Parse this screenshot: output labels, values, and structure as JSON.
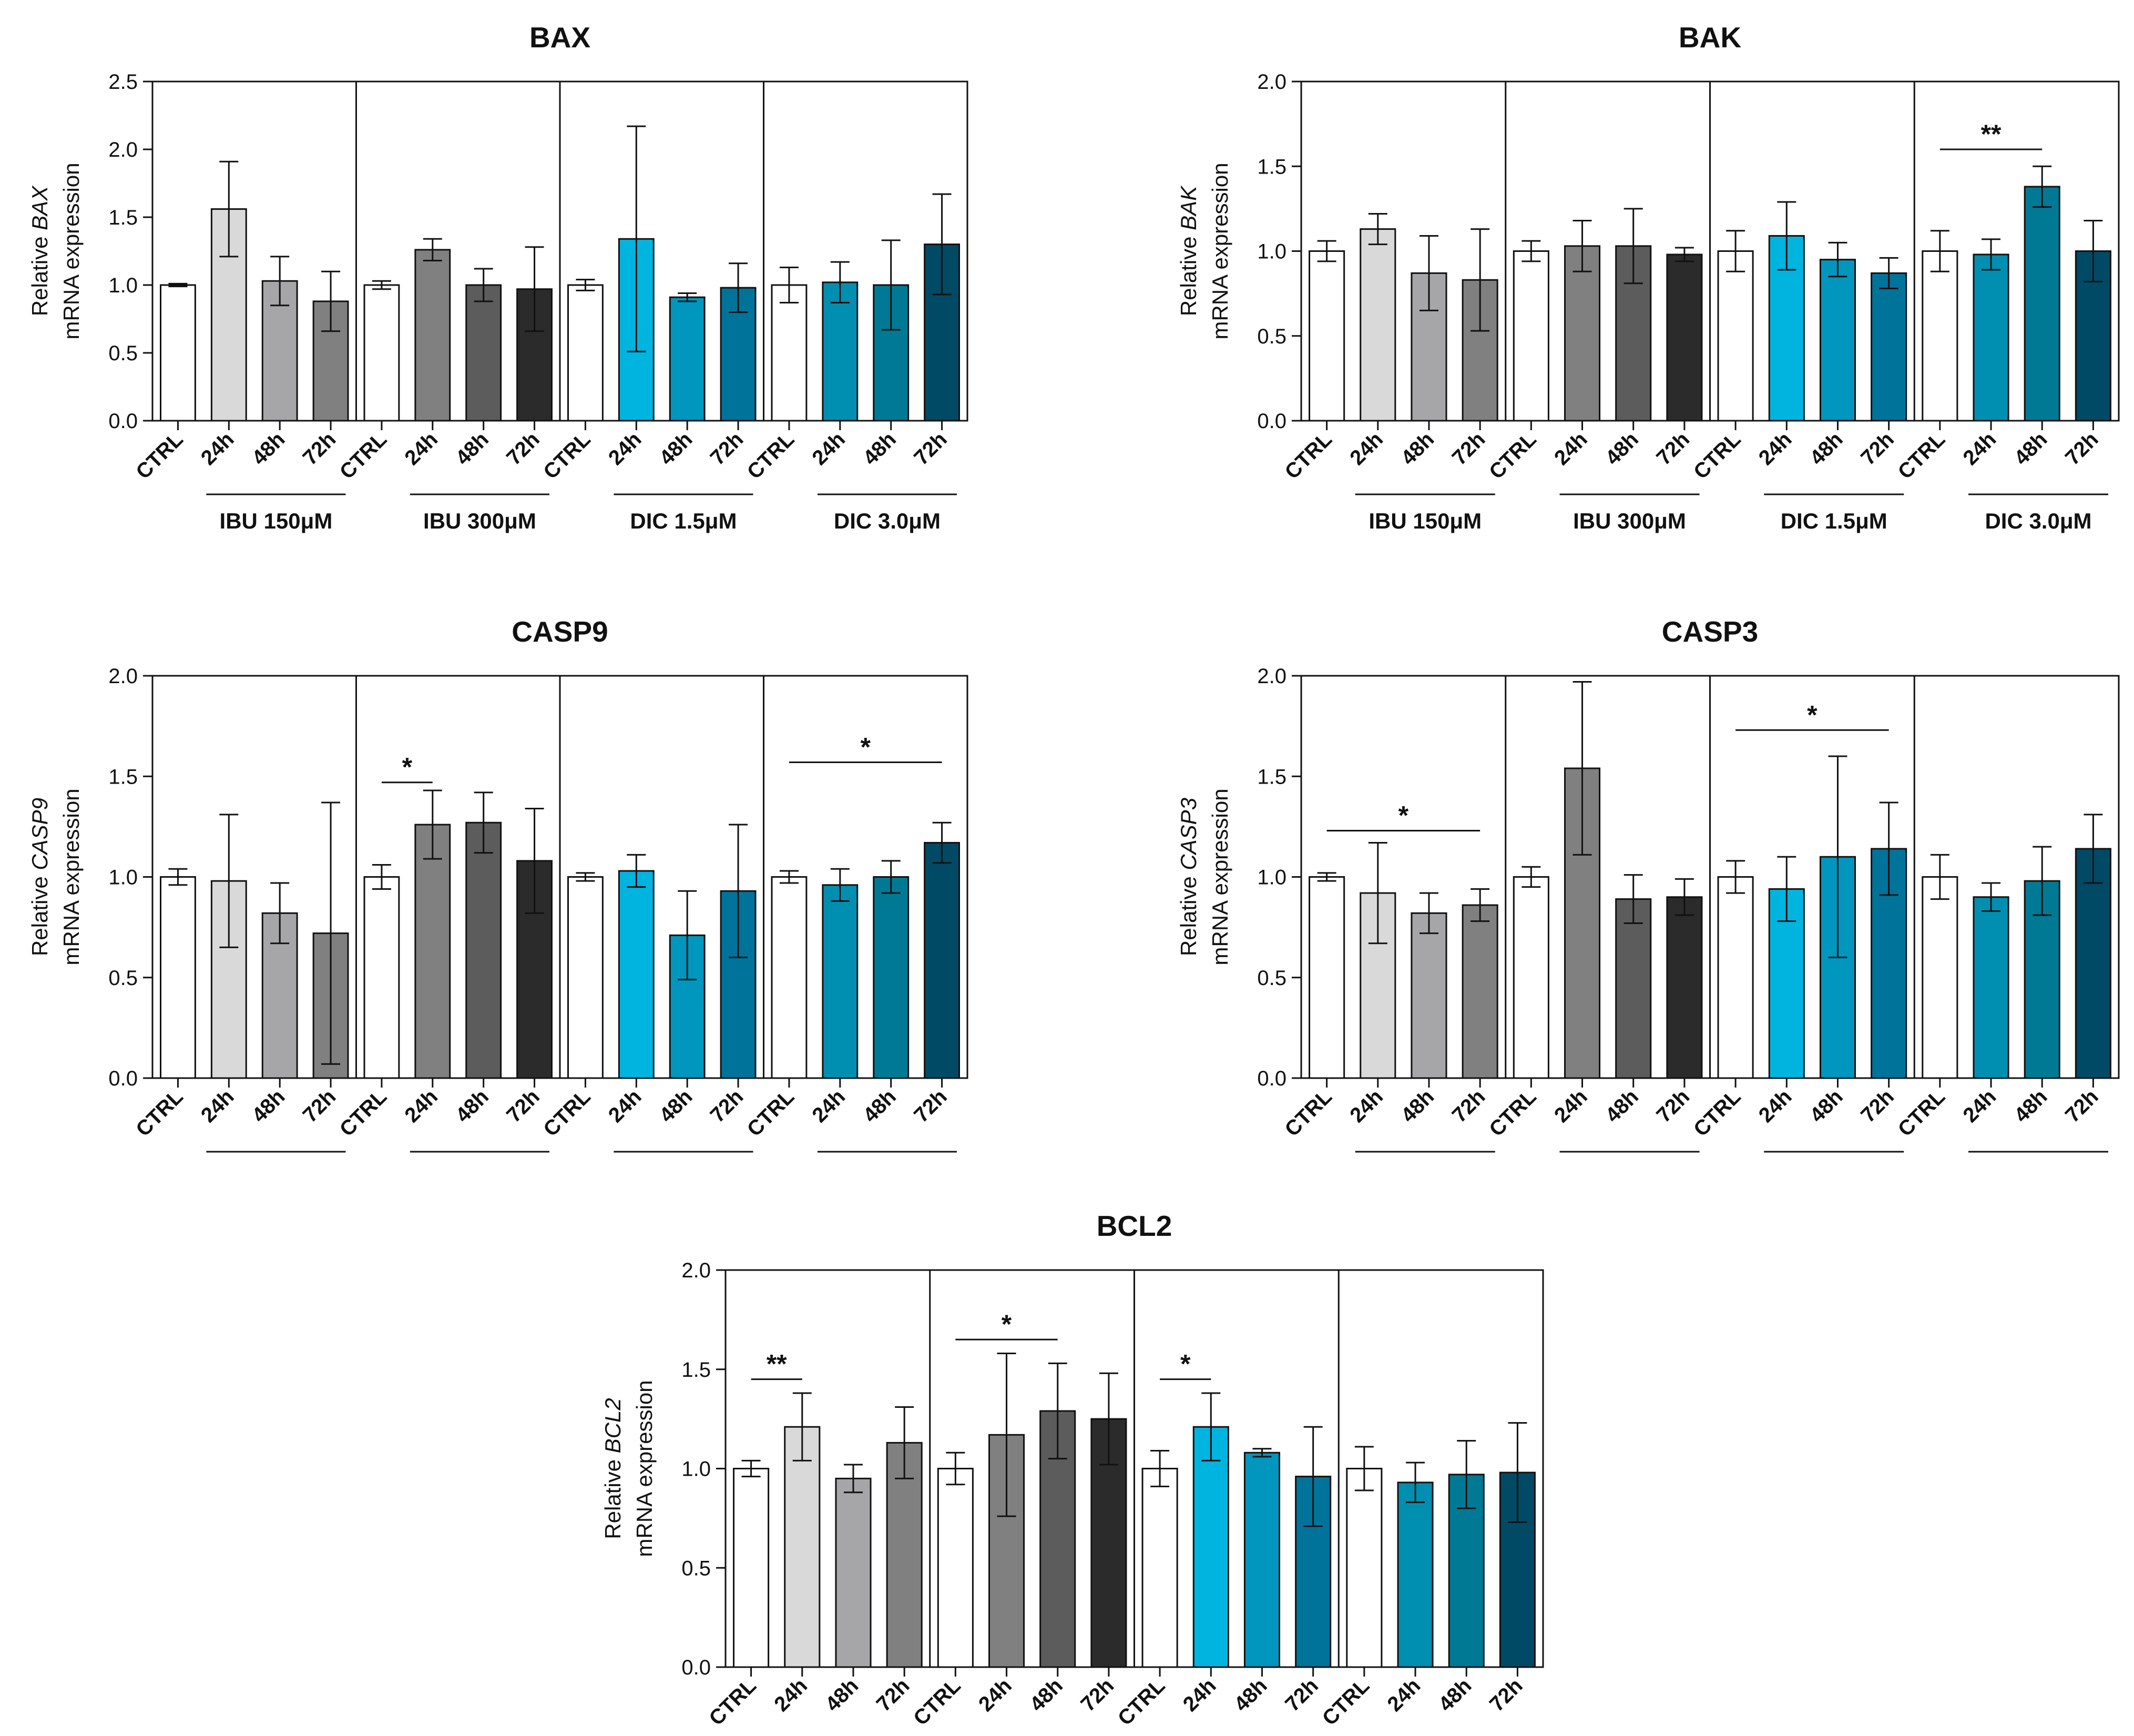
{
  "figure": {
    "categories": [
      "CTRL",
      "24h",
      "48h",
      "72h"
    ],
    "groups": [
      "IBU 150μM",
      "IBU 300μM",
      "DIC 1.5μM",
      "DIC 3.0μM"
    ],
    "ylabel_prefix": "Relative",
    "ylabel_suffix": "mRNA expression",
    "colors": [
      [
        "#ffffff",
        "#d9d9d9",
        "#a6a6a8",
        "#808080"
      ],
      [
        "#ffffff",
        "#808080",
        "#5c5c5c",
        "#2b2b2b"
      ],
      [
        "#ffffff",
        "#00b4e0",
        "#0096bd",
        "#00739a"
      ],
      [
        "#ffffff",
        "#008fb0",
        "#007a94",
        "#004a66"
      ]
    ]
  },
  "chart_data": [
    {
      "type": "bar",
      "title": "BAX",
      "gene": "BAX",
      "ylim": [
        0,
        2.5
      ],
      "yticks": [
        "0.0",
        "0.5",
        "1.0",
        "1.5",
        "2.0",
        "2.5"
      ],
      "series": [
        {
          "name": "IBU 150μM",
          "values": [
            1.0,
            1.56,
            1.03,
            0.88
          ],
          "errors": [
            0.01,
            0.35,
            0.18,
            0.22
          ]
        },
        {
          "name": "IBU 300μM",
          "values": [
            1.0,
            1.26,
            1.0,
            0.97
          ],
          "errors": [
            0.03,
            0.08,
            0.12,
            0.31
          ]
        },
        {
          "name": "DIC 1.5μM",
          "values": [
            1.0,
            1.34,
            0.91,
            0.98
          ],
          "errors": [
            0.04,
            0.83,
            0.03,
            0.18
          ]
        },
        {
          "name": "DIC 3.0μM",
          "values": [
            1.0,
            1.02,
            1.0,
            1.3
          ],
          "errors": [
            0.13,
            0.15,
            0.33,
            0.37
          ]
        }
      ],
      "significance": []
    },
    {
      "type": "bar",
      "title": "BAK",
      "gene": "BAK",
      "ylim": [
        0,
        2.0
      ],
      "yticks": [
        "0.0",
        "0.5",
        "1.0",
        "1.5",
        "2.0"
      ],
      "series": [
        {
          "name": "IBU 150μM",
          "values": [
            1.0,
            1.13,
            0.87,
            0.83
          ],
          "errors": [
            0.06,
            0.09,
            0.22,
            0.3
          ]
        },
        {
          "name": "IBU 300μM",
          "values": [
            1.0,
            1.03,
            1.03,
            0.98
          ],
          "errors": [
            0.06,
            0.15,
            0.22,
            0.04
          ]
        },
        {
          "name": "DIC 1.5μM",
          "values": [
            1.0,
            1.09,
            0.95,
            0.87
          ],
          "errors": [
            0.12,
            0.2,
            0.1,
            0.09
          ]
        },
        {
          "name": "DIC 3.0μM",
          "values": [
            1.0,
            0.98,
            1.38,
            1.0
          ],
          "errors": [
            0.12,
            0.09,
            0.12,
            0.18
          ]
        }
      ],
      "significance": [
        {
          "group": 3,
          "from": 0,
          "to": 2,
          "y": 1.6,
          "label": "**"
        }
      ]
    },
    {
      "type": "bar",
      "title": "CASP9",
      "gene": "CASP9",
      "ylim": [
        0,
        2.0
      ],
      "yticks": [
        "0.0",
        "0.5",
        "1.0",
        "1.5",
        "2.0"
      ],
      "series": [
        {
          "name": "IBU 150μM",
          "values": [
            1.0,
            0.98,
            0.82,
            0.72
          ],
          "errors": [
            0.04,
            0.33,
            0.15,
            0.65
          ]
        },
        {
          "name": "IBU 300μM",
          "values": [
            1.0,
            1.26,
            1.27,
            1.08
          ],
          "errors": [
            0.06,
            0.17,
            0.15,
            0.26
          ]
        },
        {
          "name": "DIC 1.5μM",
          "values": [
            1.0,
            1.03,
            0.71,
            0.93
          ],
          "errors": [
            0.02,
            0.08,
            0.22,
            0.33
          ]
        },
        {
          "name": "DIC 3.0μM",
          "values": [
            1.0,
            0.96,
            1.0,
            1.17
          ],
          "errors": [
            0.03,
            0.08,
            0.08,
            0.1
          ]
        }
      ],
      "significance": [
        {
          "group": 1,
          "from": 0,
          "to": 1,
          "y": 1.47,
          "label": "*"
        },
        {
          "group": 3,
          "from": 0,
          "to": 3,
          "y": 1.57,
          "label": "*"
        }
      ]
    },
    {
      "type": "bar",
      "title": "CASP3",
      "gene": "CASP3",
      "ylim": [
        0,
        2.0
      ],
      "yticks": [
        "0.0",
        "0.5",
        "1.0",
        "1.5",
        "2.0"
      ],
      "series": [
        {
          "name": "IBU 150μM",
          "values": [
            1.0,
            0.92,
            0.82,
            0.86
          ],
          "errors": [
            0.02,
            0.25,
            0.1,
            0.08
          ]
        },
        {
          "name": "IBU 300μM",
          "values": [
            1.0,
            1.54,
            0.89,
            0.9
          ],
          "errors": [
            0.05,
            0.43,
            0.12,
            0.09
          ]
        },
        {
          "name": "DIC 1.5μM",
          "values": [
            1.0,
            0.94,
            1.1,
            1.14
          ],
          "errors": [
            0.08,
            0.16,
            0.5,
            0.23
          ]
        },
        {
          "name": "DIC 3.0μM",
          "values": [
            1.0,
            0.9,
            0.98,
            1.14
          ],
          "errors": [
            0.11,
            0.07,
            0.17,
            0.17
          ]
        }
      ],
      "significance": [
        {
          "group": 0,
          "from": 0,
          "to": 3,
          "y": 1.23,
          "label": "*"
        },
        {
          "group": 2,
          "from": 0,
          "to": 3,
          "y": 1.73,
          "label": "*"
        }
      ]
    },
    {
      "type": "bar",
      "title": "BCL2",
      "gene": "BCL2",
      "ylim": [
        0,
        2.0
      ],
      "yticks": [
        "0.0",
        "0.5",
        "1.0",
        "1.5",
        "2.0"
      ],
      "series": [
        {
          "name": "IBU 150μM",
          "values": [
            1.0,
            1.21,
            0.95,
            1.13
          ],
          "errors": [
            0.04,
            0.17,
            0.07,
            0.18
          ]
        },
        {
          "name": "IBU 300μM",
          "values": [
            1.0,
            1.17,
            1.29,
            1.25
          ],
          "errors": [
            0.08,
            0.41,
            0.24,
            0.23
          ]
        },
        {
          "name": "DIC 1.5μM",
          "values": [
            1.0,
            1.21,
            1.08,
            0.96
          ],
          "errors": [
            0.09,
            0.17,
            0.02,
            0.25
          ]
        },
        {
          "name": "DIC 3.0μM",
          "values": [
            1.0,
            0.93,
            0.97,
            0.98
          ],
          "errors": [
            0.11,
            0.1,
            0.17,
            0.25
          ]
        }
      ],
      "significance": [
        {
          "group": 0,
          "from": 0,
          "to": 1,
          "y": 1.45,
          "label": "**"
        },
        {
          "group": 1,
          "from": 0,
          "to": 2,
          "y": 1.65,
          "label": "*"
        },
        {
          "group": 2,
          "from": 0,
          "to": 1,
          "y": 1.45,
          "label": "*"
        }
      ]
    }
  ]
}
